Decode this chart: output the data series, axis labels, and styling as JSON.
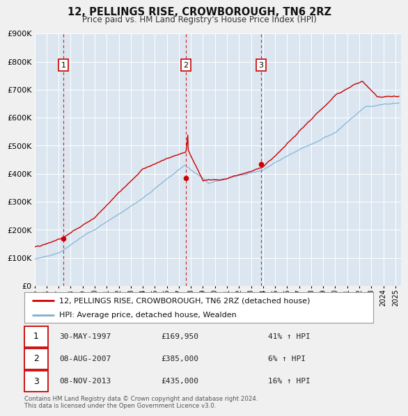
{
  "title": "12, PELLINGS RISE, CROWBOROUGH, TN6 2RZ",
  "subtitle": "Price paid vs. HM Land Registry's House Price Index (HPI)",
  "legend_line1": "12, PELLINGS RISE, CROWBOROUGH, TN6 2RZ (detached house)",
  "legend_line2": "HPI: Average price, detached house, Wealden",
  "red_color": "#cc0000",
  "blue_color": "#7bafd4",
  "plot_bg": "#dce6f0",
  "sale_points": [
    {
      "label": "1",
      "year": 1997.41,
      "price": 169950
    },
    {
      "label": "2",
      "year": 2007.59,
      "price": 385000
    },
    {
      "label": "3",
      "year": 2013.84,
      "price": 435000
    }
  ],
  "sale_vlines": [
    1997.41,
    2007.59,
    2013.84
  ],
  "table_data": [
    [
      "1",
      "30-MAY-1997",
      "£169,950",
      "41% ↑ HPI"
    ],
    [
      "2",
      "08-AUG-2007",
      "£385,000",
      "6% ↑ HPI"
    ],
    [
      "3",
      "08-NOV-2013",
      "£435,000",
      "16% ↑ HPI"
    ]
  ],
  "footnote": "Contains HM Land Registry data © Crown copyright and database right 2024.\nThis data is licensed under the Open Government Licence v3.0.",
  "ylim": [
    0,
    900000
  ],
  "xlim_start": 1995.0,
  "xlim_end": 2025.5,
  "ytick_step": 100000
}
